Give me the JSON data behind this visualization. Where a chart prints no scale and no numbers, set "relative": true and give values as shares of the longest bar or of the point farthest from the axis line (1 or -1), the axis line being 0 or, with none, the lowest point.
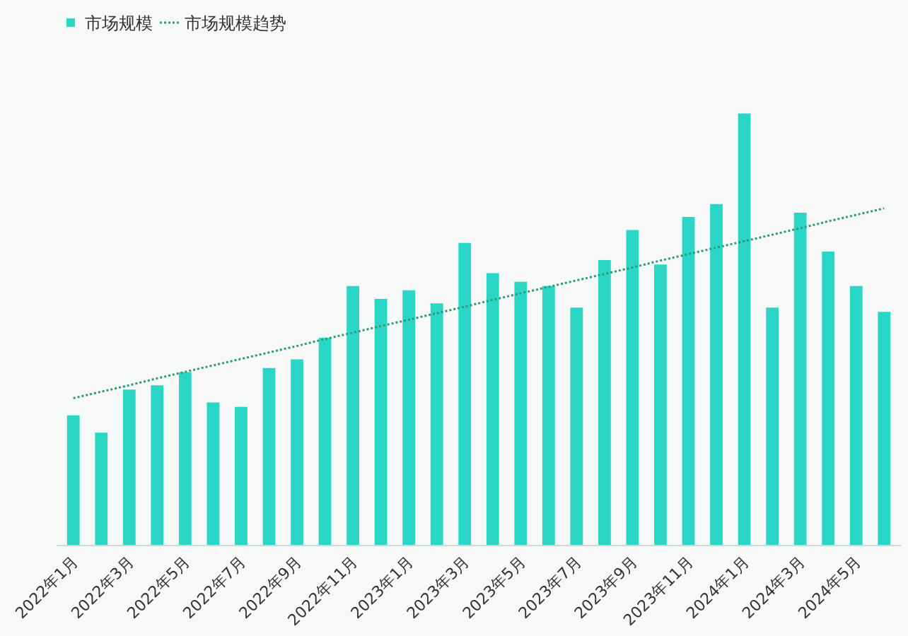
{
  "chart_data": {
    "type": "bar",
    "relative": true,
    "legend": "top left",
    "grid": false,
    "categories": [
      "2022年1月",
      null,
      "2022年3月",
      null,
      "2022年5月",
      null,
      "2022年7月",
      null,
      "2022年9月",
      null,
      "2022年11月",
      null,
      "2023年1月",
      null,
      "2023年3月",
      null,
      "2023年5月",
      null,
      "2023年7月",
      null,
      "2023年9月",
      null,
      "2023年11月",
      null,
      "2024年1月",
      null,
      "2024年3月",
      null,
      "2024年5月",
      null
    ],
    "series": [
      {
        "name": "市场规模",
        "color": "#2ad6c5",
        "values": [
          0.3,
          0.26,
          0.36,
          0.37,
          0.4,
          0.33,
          0.32,
          0.41,
          0.43,
          0.48,
          0.6,
          0.57,
          0.59,
          0.56,
          0.7,
          0.63,
          0.61,
          0.6,
          0.55,
          0.66,
          0.73,
          0.65,
          0.76,
          0.79,
          1.0,
          0.55,
          0.77,
          0.68,
          0.6,
          0.54
        ]
      },
      {
        "name": "市场规模趋势",
        "type": "line",
        "color": "#2e9a78",
        "line_style": "dotted",
        "values": [
          0.34,
          0.355,
          0.37,
          0.386,
          0.401,
          0.416,
          0.431,
          0.446,
          0.461,
          0.477,
          0.492,
          0.507,
          0.522,
          0.537,
          0.552,
          0.568,
          0.583,
          0.598,
          0.613,
          0.628,
          0.643,
          0.659,
          0.674,
          0.689,
          0.704,
          0.719,
          0.734,
          0.75,
          0.765,
          0.78
        ]
      }
    ]
  }
}
